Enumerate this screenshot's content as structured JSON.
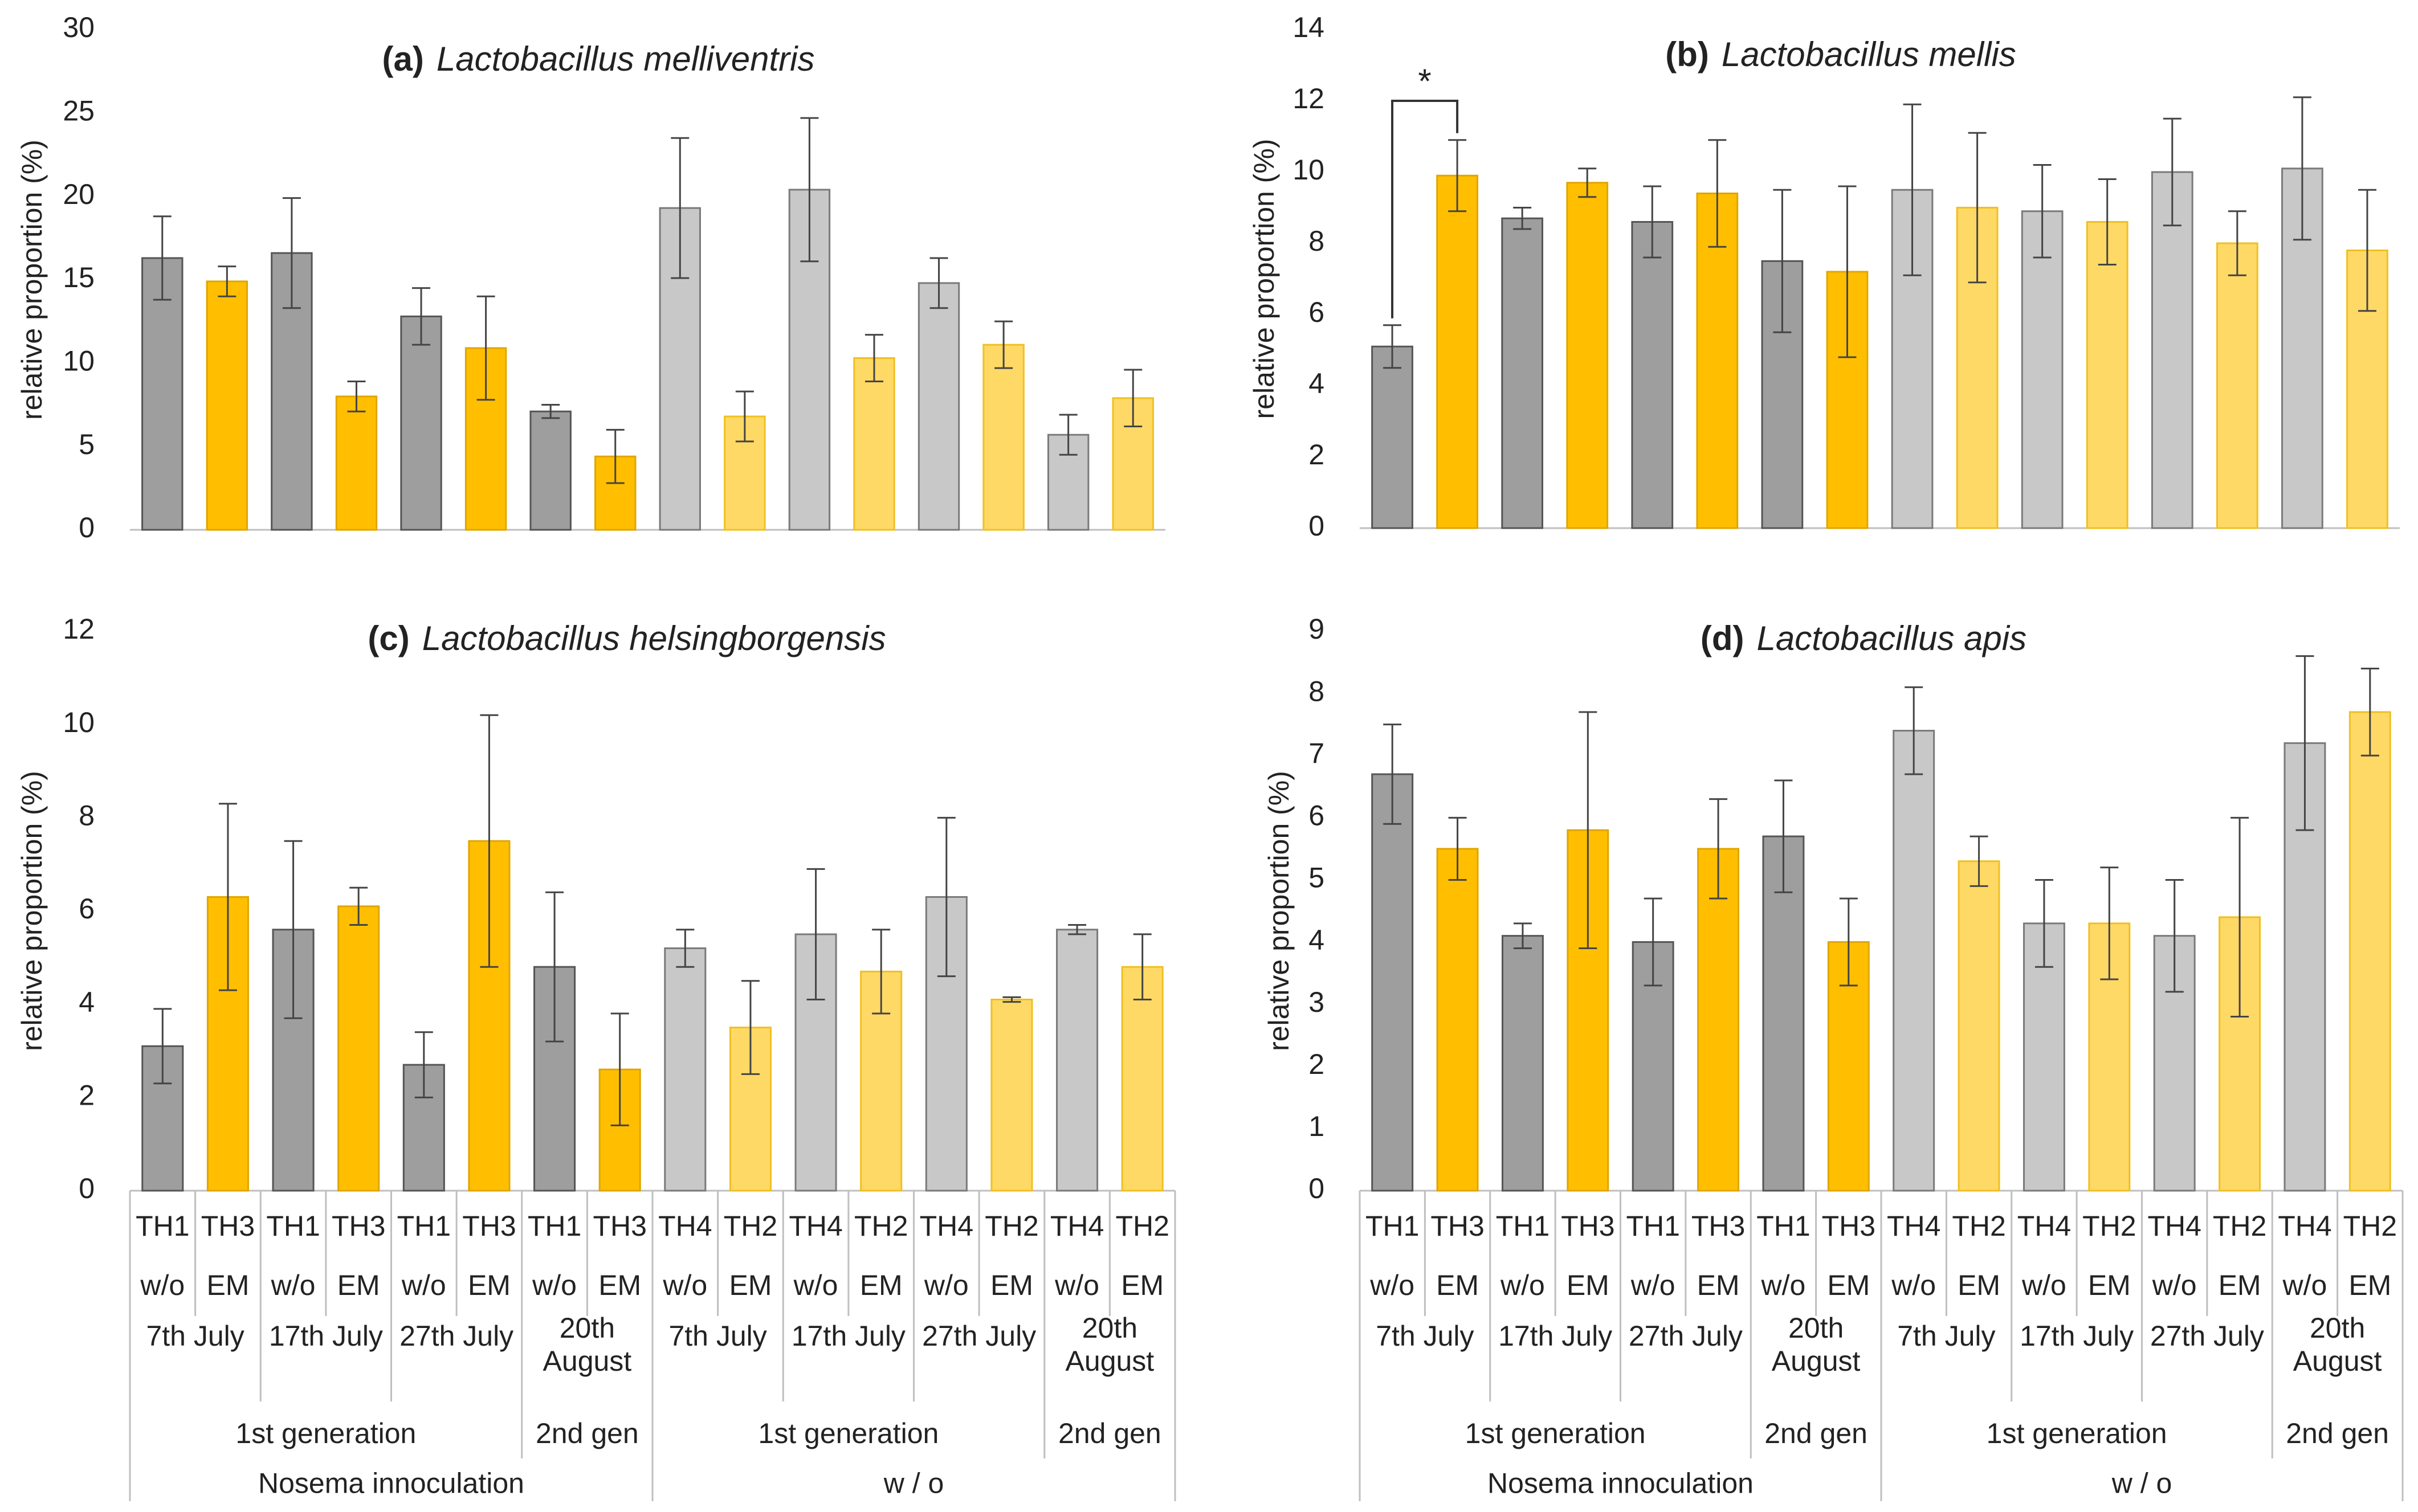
{
  "colors": {
    "dark_gray": "#9e9e9e",
    "dark_gray_edge": "#555555",
    "orange": "#ffbf00",
    "orange_edge": "#e0a500",
    "light_gray": "#c8c8c8",
    "light_gray_edge": "#7a7a7a",
    "light_orange": "#ffd966",
    "light_orange_edge": "#f0c020",
    "error_bar": "#444444",
    "axis_line": "#bfbfbf"
  },
  "x_axis": {
    "hive_labels": [
      "TH1",
      "TH3",
      "TH1",
      "TH3",
      "TH1",
      "TH3",
      "TH1",
      "TH3",
      "TH4",
      "TH2",
      "TH4",
      "TH2",
      "TH4",
      "TH2",
      "TH4",
      "TH2"
    ],
    "treatment_labels": [
      "w/o",
      "EM",
      "w/o",
      "EM",
      "w/o",
      "EM",
      "w/o",
      "EM",
      "w/o",
      "EM",
      "w/o",
      "EM",
      "w/o",
      "EM",
      "w/o",
      "EM"
    ],
    "date_labels": [
      {
        "span": [
          0,
          1
        ],
        "text": "7th July"
      },
      {
        "span": [
          2,
          3
        ],
        "text": "17th July"
      },
      {
        "span": [
          4,
          5
        ],
        "text": "27th July"
      },
      {
        "span": [
          6,
          7
        ],
        "text": "20th August"
      },
      {
        "span": [
          8,
          9
        ],
        "text": "7th July"
      },
      {
        "span": [
          10,
          11
        ],
        "text": "17th July"
      },
      {
        "span": [
          12,
          13
        ],
        "text": "27th July"
      },
      {
        "span": [
          14,
          15
        ],
        "text": "20th August"
      }
    ],
    "generation_labels": [
      {
        "span": [
          0,
          5
        ],
        "text": "1st generation"
      },
      {
        "span": [
          6,
          7
        ],
        "text": "2nd gen"
      },
      {
        "span": [
          8,
          13
        ],
        "text": "1st generation"
      },
      {
        "span": [
          14,
          15
        ],
        "text": "2nd gen"
      }
    ],
    "group_labels": [
      {
        "span": [
          0,
          7
        ],
        "text": "Nosema innoculation"
      },
      {
        "span": [
          8,
          15
        ],
        "text": "w / o"
      }
    ]
  },
  "bar_styles": [
    "dark_gray",
    "orange",
    "dark_gray",
    "orange",
    "dark_gray",
    "orange",
    "dark_gray",
    "orange",
    "light_gray",
    "light_orange",
    "light_gray",
    "light_orange",
    "light_gray",
    "light_orange",
    "light_gray",
    "light_orange"
  ],
  "chart_data": [
    {
      "type": "bar",
      "panel": "(a)",
      "species": "Lactobacillus melliventris",
      "ylabel": "relative  proportion  (%)",
      "ylim": [
        0,
        30
      ],
      "yticks": [
        0,
        5,
        10,
        15,
        20,
        25,
        30
      ],
      "values": [
        16.3,
        14.9,
        16.6,
        8.0,
        12.8,
        10.9,
        7.1,
        4.4,
        19.3,
        6.8,
        20.4,
        10.3,
        14.8,
        11.1,
        5.7,
        7.9
      ],
      "errors": [
        2.5,
        0.9,
        3.3,
        0.9,
        1.7,
        3.1,
        0.4,
        1.6,
        4.2,
        1.5,
        4.3,
        1.4,
        1.5,
        1.4,
        1.2,
        1.7
      ],
      "annotations": []
    },
    {
      "type": "bar",
      "panel": "(b)",
      "species": "Lactobacillus mellis",
      "ylabel": "relative  proportion  (%)",
      "ylim": [
        0,
        14
      ],
      "yticks": [
        0,
        2,
        4,
        6,
        8,
        10,
        12,
        14
      ],
      "values": [
        5.1,
        9.9,
        8.7,
        9.7,
        8.6,
        9.4,
        7.5,
        7.2,
        9.5,
        9.0,
        8.9,
        8.6,
        10.0,
        8.0,
        10.1,
        7.8
      ],
      "errors": [
        0.6,
        1.0,
        0.3,
        0.4,
        1.0,
        1.5,
        2.0,
        2.4,
        2.4,
        2.1,
        1.3,
        1.2,
        1.5,
        0.9,
        2.0,
        1.7
      ],
      "annotations": [
        {
          "from_bar": 0,
          "to_bar": 1,
          "text": "*"
        }
      ]
    },
    {
      "type": "bar",
      "panel": "(c)",
      "species": "Lactobacillus helsingborgensis",
      "ylabel": "relative  proportion  (%)",
      "ylim": [
        0,
        12
      ],
      "yticks": [
        0,
        2,
        4,
        6,
        8,
        10,
        12
      ],
      "values": [
        3.1,
        6.3,
        5.6,
        6.1,
        2.7,
        7.5,
        4.8,
        2.6,
        5.2,
        3.5,
        5.5,
        4.7,
        6.3,
        4.1,
        5.6,
        4.8
      ],
      "errors": [
        0.8,
        2.0,
        1.9,
        0.4,
        0.7,
        2.7,
        1.6,
        1.2,
        0.4,
        1.0,
        1.4,
        0.9,
        1.7,
        0.05,
        0.1,
        0.7
      ],
      "annotations": []
    },
    {
      "type": "bar",
      "panel": "(d)",
      "species": "Lactobacillus apis",
      "ylabel": "relative  proportion  (%)",
      "ylim": [
        0,
        9
      ],
      "yticks": [
        0,
        1,
        2,
        3,
        4,
        5,
        6,
        7,
        8,
        9
      ],
      "values": [
        6.7,
        5.5,
        4.1,
        5.8,
        4.0,
        5.5,
        5.7,
        4.0,
        7.4,
        5.3,
        4.3,
        4.3,
        4.1,
        4.4,
        7.2,
        7.7
      ],
      "errors": [
        0.8,
        0.5,
        0.2,
        1.9,
        0.7,
        0.8,
        0.9,
        0.7,
        0.7,
        0.4,
        0.7,
        0.9,
        0.9,
        1.6,
        1.4,
        0.7
      ],
      "annotations": []
    }
  ]
}
